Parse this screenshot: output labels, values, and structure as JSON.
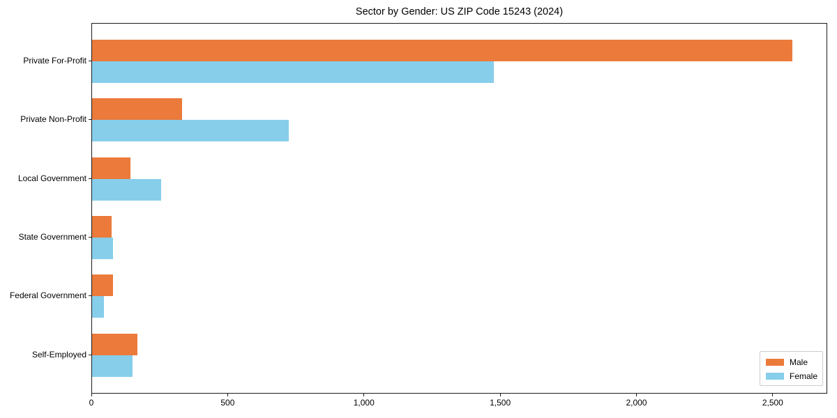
{
  "chart_data": {
    "type": "bar",
    "orientation": "horizontal",
    "title": "Sector by Gender: US ZIP Code 15243 (2024)",
    "categories": [
      "Private For-Profit",
      "Private Non-Profit",
      "Local Government",
      "State Government",
      "Federal Government",
      "Self-Employed"
    ],
    "series": [
      {
        "name": "Male",
        "color": "#eb7a3b",
        "values": [
          2570,
          330,
          140,
          72,
          76,
          166
        ]
      },
      {
        "name": "Female",
        "color": "#87ceeb",
        "values": [
          1474,
          722,
          253,
          76,
          44,
          148
        ]
      }
    ],
    "xlim": [
      0,
      2700
    ],
    "x_ticks": [
      0,
      500,
      1000,
      1500,
      2000,
      2500
    ],
    "x_tick_labels": [
      "0",
      "500",
      "1,000",
      "1,500",
      "2,000",
      "2,500"
    ],
    "ylabel": "",
    "xlabel": "",
    "grid": false,
    "legend": {
      "position": "lower right",
      "entries": [
        "Male",
        "Female"
      ]
    }
  }
}
